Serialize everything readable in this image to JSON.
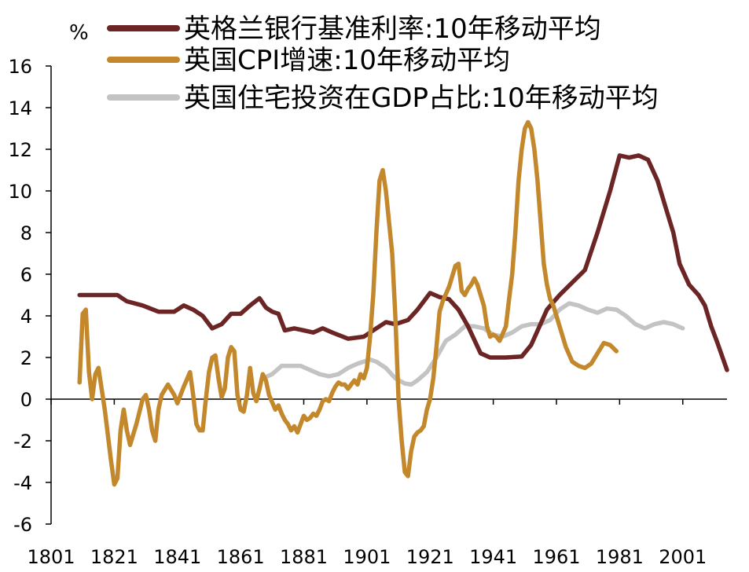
{
  "chart_data": {
    "type": "line",
    "ylabel": "%",
    "xlim": [
      1801,
      2015
    ],
    "ylim": [
      -6,
      16
    ],
    "y_ticks": [
      16,
      14,
      12,
      10,
      8,
      6,
      4,
      2,
      0,
      -2,
      -4,
      -6
    ],
    "x_ticks": [
      1801,
      1821,
      1841,
      1861,
      1881,
      1901,
      1921,
      1941,
      1961,
      1981,
      2001
    ],
    "legend_position": "top",
    "series": [
      {
        "name": "英格兰银行基准利率:10年移动平均",
        "color": "#6b2525",
        "points": [
          [
            1810,
            5.0
          ],
          [
            1822,
            5.0
          ],
          [
            1825,
            4.7
          ],
          [
            1830,
            4.5
          ],
          [
            1835,
            4.2
          ],
          [
            1840,
            4.2
          ],
          [
            1843,
            4.5
          ],
          [
            1846,
            4.3
          ],
          [
            1849,
            4.0
          ],
          [
            1852,
            3.4
          ],
          [
            1855,
            3.6
          ],
          [
            1858,
            4.1
          ],
          [
            1861,
            4.1
          ],
          [
            1864,
            4.5
          ],
          [
            1867,
            4.85
          ],
          [
            1869,
            4.4
          ],
          [
            1871,
            4.2
          ],
          [
            1873,
            4.1
          ],
          [
            1875,
            3.3
          ],
          [
            1878,
            3.4
          ],
          [
            1881,
            3.3
          ],
          [
            1884,
            3.2
          ],
          [
            1887,
            3.4
          ],
          [
            1890,
            3.2
          ],
          [
            1895,
            2.9
          ],
          [
            1900,
            3.0
          ],
          [
            1903,
            3.3
          ],
          [
            1907,
            3.7
          ],
          [
            1910,
            3.6
          ],
          [
            1914,
            3.8
          ],
          [
            1917,
            4.3
          ],
          [
            1921,
            5.1
          ],
          [
            1924,
            4.9
          ],
          [
            1927,
            4.8
          ],
          [
            1930,
            4.3
          ],
          [
            1933,
            3.5
          ],
          [
            1937,
            2.2
          ],
          [
            1940,
            2.0
          ],
          [
            1945,
            2.0
          ],
          [
            1950,
            2.05
          ],
          [
            1953,
            2.6
          ],
          [
            1958,
            4.3
          ],
          [
            1962,
            5.0
          ],
          [
            1966,
            5.6
          ],
          [
            1970,
            6.2
          ],
          [
            1974,
            8.0
          ],
          [
            1978,
            10.0
          ],
          [
            1981,
            11.7
          ],
          [
            1984,
            11.6
          ],
          [
            1987,
            11.7
          ],
          [
            1990,
            11.5
          ],
          [
            1993,
            10.5
          ],
          [
            1996,
            9.0
          ],
          [
            1998,
            8.0
          ],
          [
            2000,
            6.5
          ],
          [
            2003,
            5.5
          ],
          [
            2006,
            5.0
          ],
          [
            2008,
            4.5
          ],
          [
            2010,
            3.5
          ],
          [
            2012,
            2.7
          ],
          [
            2015,
            1.4
          ]
        ]
      },
      {
        "name": "英国CPI增速:10年移动平均",
        "color": "#c4882c",
        "points": [
          [
            1810,
            0.8
          ],
          [
            1811,
            4.1
          ],
          [
            1812,
            4.3
          ],
          [
            1813,
            1.3
          ],
          [
            1814,
            0.0
          ],
          [
            1815,
            1.2
          ],
          [
            1816,
            1.5
          ],
          [
            1818,
            -0.5
          ],
          [
            1820,
            -3.0
          ],
          [
            1821,
            -4.1
          ],
          [
            1822,
            -3.8
          ],
          [
            1823,
            -1.5
          ],
          [
            1824,
            -0.5
          ],
          [
            1825,
            -1.5
          ],
          [
            1826,
            -2.2
          ],
          [
            1828,
            -1.2
          ],
          [
            1830,
            0.0
          ],
          [
            1831,
            0.2
          ],
          [
            1832,
            -0.5
          ],
          [
            1833,
            -1.5
          ],
          [
            1834,
            -2.0
          ],
          [
            1835,
            -0.5
          ],
          [
            1836,
            0.2
          ],
          [
            1838,
            0.7
          ],
          [
            1840,
            0.2
          ],
          [
            1841,
            -0.2
          ],
          [
            1843,
            0.6
          ],
          [
            1845,
            1.3
          ],
          [
            1846,
            0.2
          ],
          [
            1847,
            -1.2
          ],
          [
            1848,
            -1.5
          ],
          [
            1849,
            -1.5
          ],
          [
            1850,
            0.0
          ],
          [
            1851,
            1.3
          ],
          [
            1852,
            2.0
          ],
          [
            1853,
            2.1
          ],
          [
            1854,
            1.0
          ],
          [
            1855,
            0.1
          ],
          [
            1856,
            0.5
          ],
          [
            1857,
            2.0
          ],
          [
            1858,
            2.5
          ],
          [
            1859,
            2.3
          ],
          [
            1860,
            0.2
          ],
          [
            1861,
            -0.5
          ],
          [
            1862,
            -0.6
          ],
          [
            1863,
            0.2
          ],
          [
            1864,
            1.5
          ],
          [
            1865,
            0.3
          ],
          [
            1866,
            -0.1
          ],
          [
            1867,
            0.5
          ],
          [
            1868,
            1.2
          ],
          [
            1869,
            0.9
          ],
          [
            1870,
            0.2
          ],
          [
            1872,
            -0.5
          ],
          [
            1873,
            -0.3
          ],
          [
            1874,
            -0.7
          ],
          [
            1875,
            -1.0
          ],
          [
            1876,
            -1.2
          ],
          [
            1877,
            -1.5
          ],
          [
            1878,
            -1.3
          ],
          [
            1879,
            -1.6
          ],
          [
            1880,
            -1.2
          ],
          [
            1881,
            -0.8
          ],
          [
            1882,
            -1.0
          ],
          [
            1883,
            -0.9
          ],
          [
            1884,
            -0.7
          ],
          [
            1885,
            -0.8
          ],
          [
            1886,
            -0.5
          ],
          [
            1887,
            -0.1
          ],
          [
            1888,
            0.0
          ],
          [
            1889,
            -0.1
          ],
          [
            1890,
            0.3
          ],
          [
            1891,
            0.6
          ],
          [
            1892,
            0.8
          ],
          [
            1893,
            0.7
          ],
          [
            1894,
            0.7
          ],
          [
            1895,
            0.5
          ],
          [
            1896,
            0.7
          ],
          [
            1897,
            0.9
          ],
          [
            1898,
            0.7
          ],
          [
            1899,
            1.2
          ],
          [
            1900,
            1.0
          ],
          [
            1901,
            1.5
          ],
          [
            1902,
            3.0
          ],
          [
            1903,
            5.0
          ],
          [
            1904,
            8.0
          ],
          [
            1905,
            10.5
          ],
          [
            1906,
            11.0
          ],
          [
            1907,
            10.0
          ],
          [
            1908,
            8.5
          ],
          [
            1909,
            7.0
          ],
          [
            1910,
            4.0
          ],
          [
            1911,
            0.0
          ],
          [
            1912,
            -2.0
          ],
          [
            1913,
            -3.5
          ],
          [
            1914,
            -3.7
          ],
          [
            1915,
            -2.5
          ],
          [
            1916,
            -1.8
          ],
          [
            1917,
            -1.6
          ],
          [
            1918,
            -1.5
          ],
          [
            1919,
            -1.3
          ],
          [
            1920,
            -0.5
          ],
          [
            1921,
            0.0
          ],
          [
            1922,
            1.0
          ],
          [
            1923,
            2.5
          ],
          [
            1924,
            4.2
          ],
          [
            1925,
            4.7
          ],
          [
            1927,
            5.4
          ],
          [
            1929,
            6.4
          ],
          [
            1930,
            6.5
          ],
          [
            1931,
            5.2
          ],
          [
            1932,
            5.0
          ],
          [
            1933,
            5.3
          ],
          [
            1934,
            5.5
          ],
          [
            1935,
            5.8
          ],
          [
            1936,
            5.5
          ],
          [
            1937,
            5.0
          ],
          [
            1938,
            4.5
          ],
          [
            1939,
            3.5
          ],
          [
            1940,
            3.0
          ],
          [
            1941,
            3.1
          ],
          [
            1942,
            3.0
          ],
          [
            1943,
            2.8
          ],
          [
            1945,
            3.5
          ],
          [
            1946,
            4.8
          ],
          [
            1947,
            6.0
          ],
          [
            1948,
            8.0
          ],
          [
            1949,
            10.5
          ],
          [
            1950,
            12.0
          ],
          [
            1951,
            13.0
          ],
          [
            1952,
            13.3
          ],
          [
            1953,
            13.0
          ],
          [
            1954,
            12.0
          ],
          [
            1955,
            10.5
          ],
          [
            1956,
            8.5
          ],
          [
            1957,
            6.5
          ],
          [
            1958,
            5.5
          ],
          [
            1959,
            4.8
          ],
          [
            1960,
            4.5
          ],
          [
            1962,
            3.5
          ],
          [
            1964,
            2.5
          ],
          [
            1966,
            1.8
          ],
          [
            1968,
            1.6
          ],
          [
            1970,
            1.5
          ],
          [
            1972,
            1.7
          ],
          [
            1974,
            2.2
          ],
          [
            1976,
            2.7
          ],
          [
            1978,
            2.6
          ],
          [
            1980,
            2.3
          ]
        ]
      },
      {
        "name": "英国住宅投资在GDP占比:10年移动平均",
        "color": "#c3c3c3",
        "points": [
          [
            1868,
            1.0
          ],
          [
            1871,
            1.2
          ],
          [
            1874,
            1.6
          ],
          [
            1877,
            1.6
          ],
          [
            1880,
            1.6
          ],
          [
            1883,
            1.4
          ],
          [
            1886,
            1.2
          ],
          [
            1889,
            1.1
          ],
          [
            1892,
            1.2
          ],
          [
            1895,
            1.5
          ],
          [
            1898,
            1.7
          ],
          [
            1900,
            1.8
          ],
          [
            1902,
            1.9
          ],
          [
            1904,
            1.8
          ],
          [
            1907,
            1.5
          ],
          [
            1910,
            1.0
          ],
          [
            1913,
            0.75
          ],
          [
            1915,
            0.7
          ],
          [
            1917,
            0.9
          ],
          [
            1920,
            1.3
          ],
          [
            1923,
            2.0
          ],
          [
            1926,
            2.8
          ],
          [
            1929,
            3.1
          ],
          [
            1932,
            3.5
          ],
          [
            1935,
            3.5
          ],
          [
            1938,
            3.4
          ],
          [
            1941,
            3.1
          ],
          [
            1944,
            3.0
          ],
          [
            1947,
            3.2
          ],
          [
            1950,
            3.5
          ],
          [
            1953,
            3.6
          ],
          [
            1956,
            3.6
          ],
          [
            1959,
            3.8
          ],
          [
            1962,
            4.3
          ],
          [
            1965,
            4.6
          ],
          [
            1968,
            4.5
          ],
          [
            1971,
            4.3
          ],
          [
            1974,
            4.15
          ],
          [
            1977,
            4.35
          ],
          [
            1980,
            4.3
          ],
          [
            1983,
            4.0
          ],
          [
            1986,
            3.6
          ],
          [
            1989,
            3.4
          ],
          [
            1992,
            3.6
          ],
          [
            1995,
            3.7
          ],
          [
            1998,
            3.6
          ],
          [
            2001,
            3.4
          ]
        ]
      }
    ]
  }
}
